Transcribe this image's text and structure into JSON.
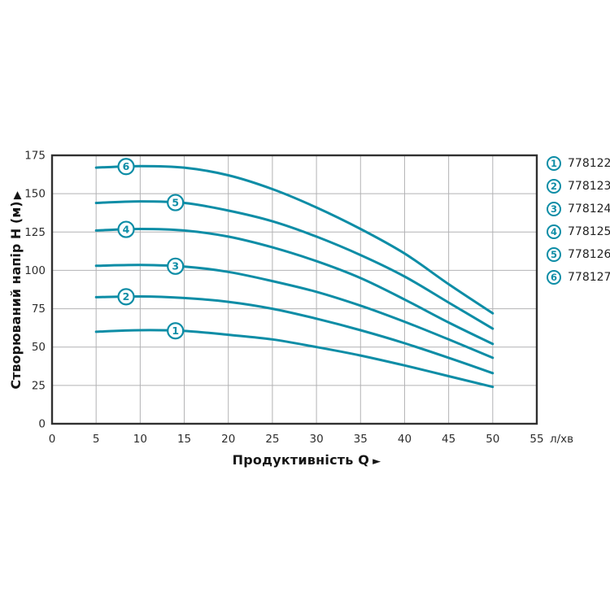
{
  "chart_data": {
    "type": "line",
    "title": "",
    "xlabel": "Продуктивність  Q",
    "xlabel_arrow": "►",
    "ylabel": "Створюваний напір H (м)",
    "ylabel_arrow": "▲",
    "x_unit": "л/хв",
    "xlim": [
      0,
      55
    ],
    "ylim": [
      0,
      175
    ],
    "x_ticks": [
      0,
      5,
      10,
      15,
      20,
      25,
      30,
      35,
      40,
      45,
      50,
      55
    ],
    "y_ticks": [
      0,
      25,
      50,
      75,
      100,
      125,
      150,
      175
    ],
    "grid": true,
    "legend_position": "right-outside",
    "colors": {
      "curve": "#0D8DA6",
      "grid": "#b2b2b4",
      "frame": "#303030",
      "tick_text": "#2d2d2d",
      "label_text": "#151515"
    },
    "x": [
      5,
      10,
      15,
      20,
      25,
      30,
      35,
      40,
      45,
      50
    ],
    "series": [
      {
        "num": "1",
        "article": "778122",
        "label_pos": {
          "q": 14,
          "h": 60.6
        },
        "values": [
          60,
          61,
          60.5,
          58,
          55,
          50,
          44.5,
          38,
          31,
          24
        ]
      },
      {
        "num": "2",
        "article": "778123",
        "label_pos": {
          "q": 8.4,
          "h": 82.8
        },
        "values": [
          82.5,
          83,
          82,
          79.5,
          75,
          68.5,
          61,
          52.5,
          43,
          33
        ]
      },
      {
        "num": "3",
        "article": "778124",
        "label_pos": {
          "q": 14,
          "h": 102.7
        },
        "values": [
          103,
          103.5,
          102.5,
          99,
          93,
          86,
          77,
          66.5,
          55,
          43
        ]
      },
      {
        "num": "4",
        "article": "778125",
        "label_pos": {
          "q": 8.4,
          "h": 126.7
        },
        "values": [
          126,
          127,
          126,
          122,
          115,
          106,
          95,
          81,
          66,
          52
        ]
      },
      {
        "num": "5",
        "article": "778126",
        "label_pos": {
          "q": 14,
          "h": 144.2
        },
        "values": [
          144,
          145,
          144,
          139,
          132,
          122,
          110,
          96,
          79,
          62
        ]
      },
      {
        "num": "6",
        "article": "778127",
        "label_pos": {
          "q": 8.4,
          "h": 167.7
        },
        "values": [
          167,
          168,
          167,
          162,
          153,
          141,
          127,
          111,
          91,
          72
        ]
      }
    ]
  }
}
